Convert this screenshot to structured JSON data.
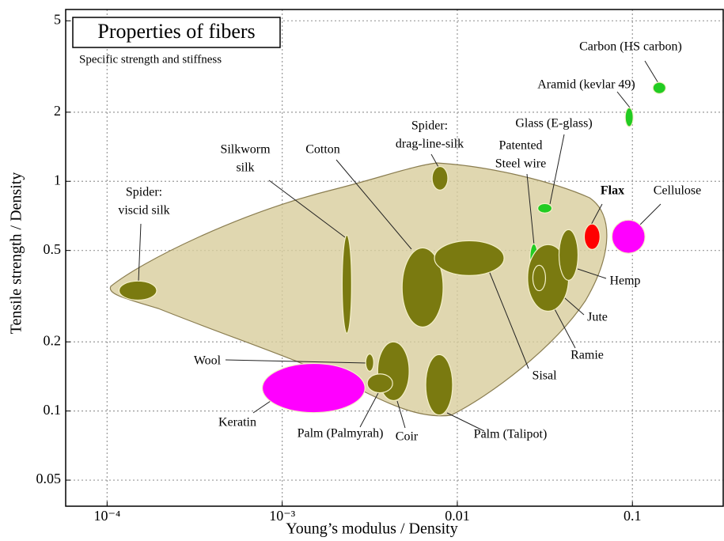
{
  "chart_data": {
    "type": "scatter",
    "title": "Properties of fibers",
    "title_color": "#ff0000",
    "subtitle": "Specific strength and stiffness",
    "x_label": "Young’s modulus / Density",
    "y_label": "Tensile strength / Density",
    "log_x": true,
    "log_y": true,
    "grid": true,
    "xlim": [
      5.8e-05,
      0.33
    ],
    "ylim": [
      0.0385,
      5.6
    ],
    "xticks": [
      {
        "value": 0.0001,
        "label": "10⁻⁴"
      },
      {
        "value": 0.001,
        "label": "10⁻³"
      },
      0.01,
      0.1
    ],
    "yticks": [
      0.05,
      0.1,
      0.2,
      0.5,
      1,
      2,
      5
    ],
    "fibers": [
      {
        "label": [
          "Spider:",
          "viscid silk"
        ],
        "color": "#7a7a10",
        "x": [
          0.000117,
          0.000192
        ],
        "y": [
          0.304,
          0.368
        ]
      },
      {
        "label": [
          "Silkworm",
          "silk"
        ],
        "color": "#7a7a10",
        "x": [
          0.0022,
          0.00249
        ],
        "y": [
          0.218,
          0.583
        ]
      },
      {
        "label": [
          "Cotton"
        ],
        "color": "#7a7a10",
        "x": [
          0.00484,
          0.0083
        ],
        "y": [
          0.232,
          0.513
        ]
      },
      {
        "label": [
          "Spider:",
          "drag-line-silk"
        ],
        "color": "#7a7a10",
        "x": [
          0.00718,
          0.00883
        ],
        "y": [
          0.916,
          1.16
        ]
      },
      {
        "label": [
          "Sisal"
        ],
        "color": "#7a7a10",
        "x": [
          0.0074,
          0.0185
        ],
        "y": [
          0.389,
          0.551
        ]
      },
      {
        "label": [
          "Patented",
          "Steel wire"
        ],
        "color": "#22cc22",
        "x": [
          0.026,
          0.0288
        ],
        "y": [
          0.408,
          0.534
        ]
      },
      {
        "label": [
          "Jute"
        ],
        "color": "#7a7a10",
        "x": [
          0.0252,
          0.0432
        ],
        "y": [
          0.272,
          0.53
        ]
      },
      {
        "label": [
          "Ramie"
        ],
        "color": "#7a7a10",
        "x": [
          0.027,
          0.0319
        ],
        "y": [
          0.334,
          0.431
        ]
      },
      {
        "label": [
          "Hemp"
        ],
        "color": "#7a7a10",
        "x": [
          0.0381,
          0.0489
        ],
        "y": [
          0.371,
          0.616
        ]
      },
      {
        "label": [
          "Flax"
        ],
        "color": "#ff0000",
        "label_color": "#ff0000",
        "label_weight": "bold",
        "x": [
          0.0531,
          0.0653
        ],
        "y": [
          0.505,
          0.652
        ]
      },
      {
        "label": [
          "Cellulose"
        ],
        "color": "#ff00ff",
        "x": [
          0.0764,
          0.118
        ],
        "y": [
          0.486,
          0.678
        ]
      },
      {
        "label": [
          "Glass (E-glass)"
        ],
        "color": "#22cc22",
        "x": [
          0.0288,
          0.0347
        ],
        "y": [
          0.728,
          0.8
        ]
      },
      {
        "label": [
          "Aramid (kevlar 49)"
        ],
        "color": "#22cc22",
        "x": [
          0.091,
          0.101
        ],
        "y": [
          1.73,
          2.09
        ]
      },
      {
        "label": [
          "Carbon (HS carbon)"
        ],
        "color": "#22cc22",
        "x": [
          0.131,
          0.155
        ],
        "y": [
          2.41,
          2.7
        ]
      },
      {
        "label": [
          "Wool"
        ],
        "color": "#7a7a10",
        "x": [
          0.003,
          0.00333
        ],
        "y": [
          0.149,
          0.177
        ]
      },
      {
        "label": [
          "Coir"
        ],
        "color": "#7a7a10",
        "x": [
          0.00351,
          0.00531
        ],
        "y": [
          0.111,
          0.2
        ]
      },
      {
        "label": [
          "Palm (Palmyrah)"
        ],
        "color": "#7a7a10",
        "x": [
          0.00306,
          0.00427
        ],
        "y": [
          0.12,
          0.145
        ]
      },
      {
        "label": [
          "Palm (Talipot)"
        ],
        "color": "#7a7a10",
        "x": [
          0.0066,
          0.0094
        ],
        "y": [
          0.0961,
          0.176
        ]
      },
      {
        "label": [
          "Keratin"
        ],
        "color": "#ff00ff",
        "x": [
          0.00077,
          0.00297
        ],
        "y": [
          0.0984,
          0.161
        ]
      }
    ]
  }
}
